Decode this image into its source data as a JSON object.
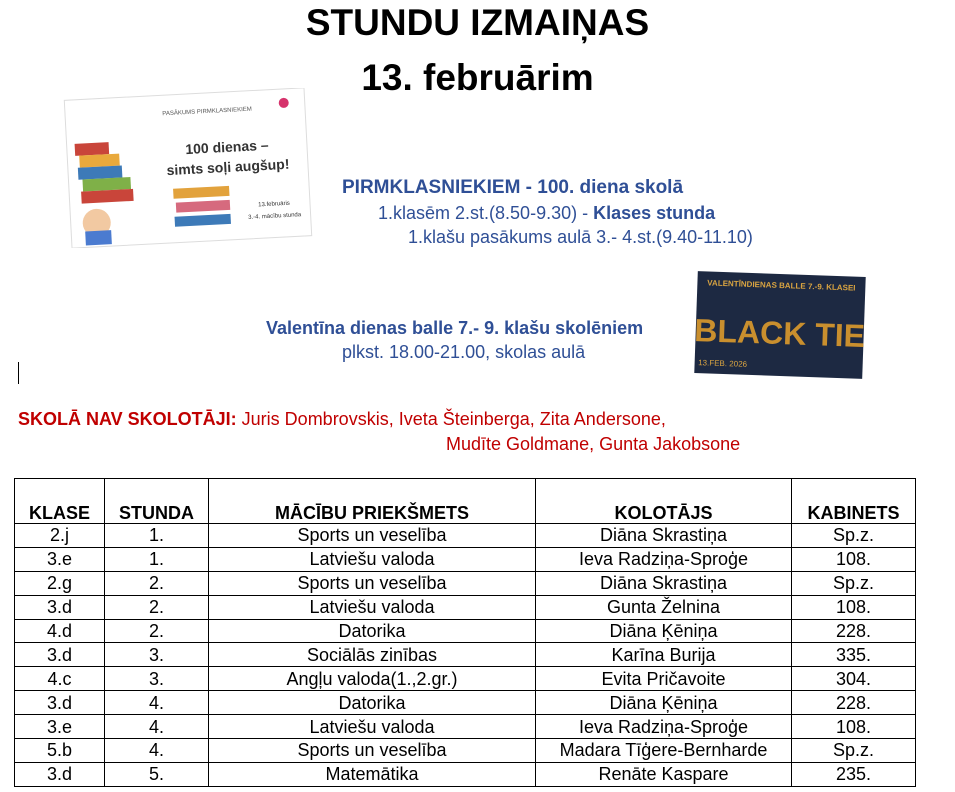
{
  "header": {
    "title": "STUNDU IZMAIŅAS",
    "date": "13. februārim"
  },
  "poster_1": {
    "caption": "PASĀKUMS PIRMKLASNIEKIEM",
    "headline_1": "100 dienas –",
    "headline_2": "simts soļi augšup!",
    "date": "13.februāris",
    "time": "3.-4. mācību stunda"
  },
  "event_1": {
    "title": "PIRMKLASNIEKIEM - 100. diena skolā",
    "line_1": "1.klasēm 2.st.(8.50-9.30) - ",
    "line_1_bold": "Klases stunda",
    "line_2": "1.klašu pasākums aulā 3.- 4.st.(9.40-11.10)"
  },
  "poster_2": {
    "caption": "VALENTĪNDIENAS BALLE 7.-9. KLASEI",
    "headline": "BLACK TIE",
    "date": "13.FEB. 2026"
  },
  "event_2": {
    "title": "Valentīna dienas balle 7.- 9. klašu skolēniem",
    "line_1": "plkst. 18.00-21.00, skolas aulā"
  },
  "absent": {
    "label": "SKOLĀ NAV SKOLOTĀJI:",
    "names_1": " Juris Dombrovskis, Iveta Šteinberga, Zita Andersone,",
    "names_2": "Mudīte Goldmane, Gunta Jakobsone"
  },
  "table": {
    "columns": [
      "KLASE",
      "STUNDA",
      "MĀCĪBU PRIEKŠMETS",
      "KOLOTĀJS",
      "KABINETS"
    ],
    "rows": [
      [
        "2.j",
        "1.",
        "Sports un veselība",
        "Diāna Skrastiņa",
        "Sp.z."
      ],
      [
        "3.e",
        "1.",
        "Latviešu valoda",
        "Ieva Radziņa-Sproģe",
        "108."
      ],
      [
        "2.g",
        "2.",
        "Sports un veselība",
        "Diāna Skrastiņa",
        "Sp.z."
      ],
      [
        "3.d",
        "2.",
        "Latviešu valoda",
        "Gunta Želnina",
        "108."
      ],
      [
        "4.d",
        "2.",
        "Datorika",
        "Diāna Ķēniņa",
        "228."
      ],
      [
        "3.d",
        "3.",
        "Sociālās zinības",
        "Karīna Burija",
        "335."
      ],
      [
        "4.c",
        "3.",
        "Angļu valoda(1.,2.gr.)",
        "Evita Pričavoite",
        "304."
      ],
      [
        "3.d",
        "4.",
        "Datorika",
        "Diāna Ķēniņa",
        "228."
      ],
      [
        "3.e",
        "4.",
        "Latviešu valoda",
        "Ieva Radziņa-Sproģe",
        "108."
      ],
      [
        "5.b",
        "4.",
        "Sports un veselība",
        "Madara Tīģere-Bernharde",
        "Sp.z."
      ],
      [
        "3.d",
        "5.",
        "Matemātika",
        "Renāte Kaspare",
        "235."
      ]
    ]
  }
}
